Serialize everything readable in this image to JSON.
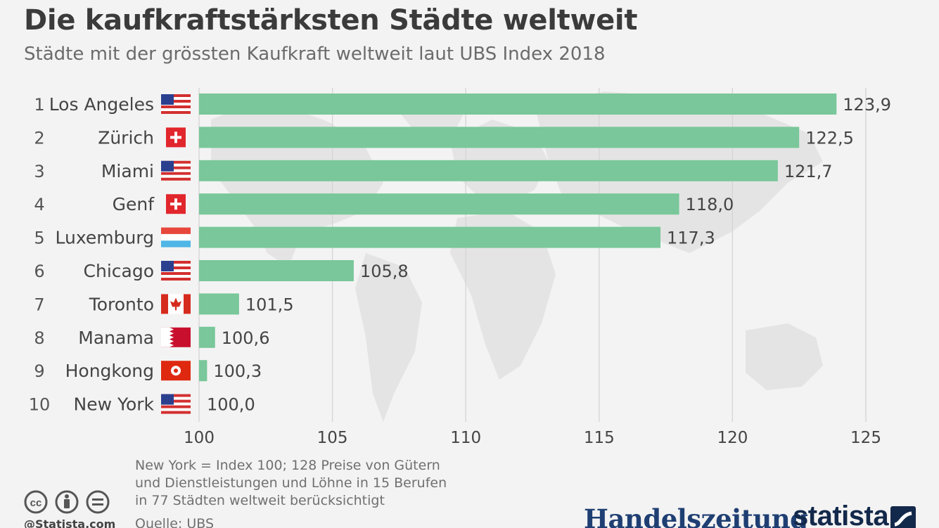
{
  "header": {
    "title": "Die kaufkraftstärksten Städte weltweit",
    "subtitle": "Städte mit der grössten Kaufkraft weltweit laut UBS Index 2018"
  },
  "chart_data": {
    "type": "bar",
    "orientation": "horizontal",
    "title": "Die kaufkraftstärksten Städte weltweit",
    "subtitle": "Städte mit der grössten Kaufkraft weltweit laut UBS Index 2018",
    "ranks": [
      "1",
      "2",
      "3",
      "4",
      "5",
      "6",
      "7",
      "8",
      "9",
      "10"
    ],
    "categories": [
      "Los Angeles",
      "Zürich",
      "Miami",
      "Genf",
      "Luxemburg",
      "Chicago",
      "Toronto",
      "Manama",
      "Hongkong",
      "New York"
    ],
    "flags": [
      "us",
      "ch",
      "us",
      "ch",
      "lu",
      "us",
      "ca",
      "bh",
      "hk",
      "us"
    ],
    "values": [
      123.9,
      122.5,
      121.7,
      118.0,
      117.3,
      105.8,
      101.5,
      100.6,
      100.3,
      100.0
    ],
    "value_labels": [
      "123,9",
      "122,5",
      "121,7",
      "118,0",
      "117,3",
      "105,8",
      "101,5",
      "100,6",
      "100,3",
      "100,0"
    ],
    "xlim": [
      100,
      125
    ],
    "xticks": [
      100,
      105,
      110,
      115,
      120,
      125
    ],
    "xtick_labels": [
      "100",
      "105",
      "110",
      "115",
      "120",
      "125"
    ],
    "grid": true,
    "bar_color": "#79c79a",
    "background_map": "world-map"
  },
  "footer": {
    "note_lines": [
      "New York = Index 100; 128 Preise von Gütern",
      "und Dienstleistungen und Löhne in 15 Berufen",
      "in 77 Städten weltweit berücksichtigt"
    ],
    "source": "Quelle: UBS",
    "license_icons": [
      "cc-icon",
      "attribution-icon",
      "no-derivatives-icon"
    ],
    "handle": "@Statista.com",
    "brand_publisher": "Handelszeitung",
    "brand_statista": "statista"
  },
  "colors": {
    "bar": "#79c79a",
    "grid": "#d4d4d4",
    "map": "#e4e4e4",
    "title": "#3b3b3b",
    "brand_hz": "#1f3f73",
    "brand_statista": "#13294b"
  }
}
